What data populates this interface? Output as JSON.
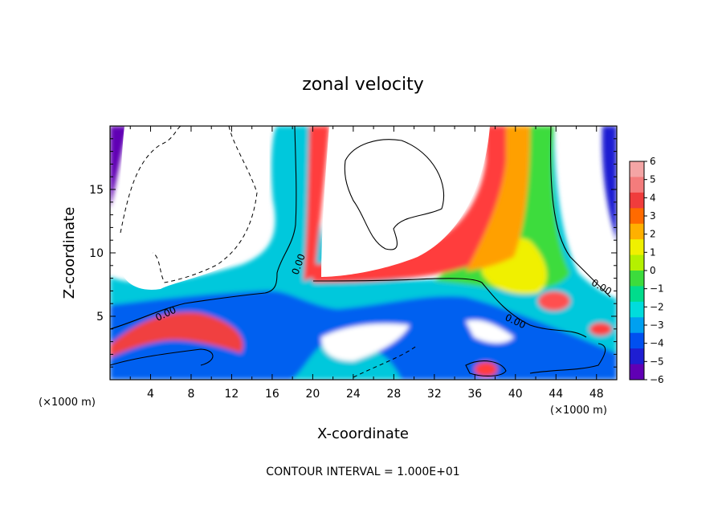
{
  "chart_data": {
    "type": "heatmap",
    "title": "zonal velocity",
    "xlabel": "X-coordinate",
    "ylabel": "Z-coordinate",
    "x_units": "(×1000 m)",
    "y_units": "(×1000 m)",
    "xlim": [
      0,
      50
    ],
    "ylim": [
      0,
      20
    ],
    "x_ticks": [
      "4",
      "8",
      "12",
      "16",
      "20",
      "24",
      "28",
      "32",
      "36",
      "40",
      "44",
      "48"
    ],
    "y_ticks": [
      "5",
      "10",
      "15"
    ],
    "colorbar": {
      "range": [
        -6,
        6
      ],
      "labels": [
        "6",
        "5",
        "4",
        "3",
        "2",
        "1",
        "0",
        "−1",
        "−2",
        "−3",
        "−4",
        "−5",
        "−6"
      ],
      "colors": [
        "#f4a5a5",
        "#f47c7c",
        "#f03c3c",
        "#ff6a00",
        "#ffb000",
        "#f0f000",
        "#b4f000",
        "#3cdc3c",
        "#00dc8c",
        "#00dcdc",
        "#00a0f0",
        "#0050f0",
        "#1e1ed2",
        "#6000b4"
      ],
      "placement": "right"
    },
    "contour_labels": [
      "0.00",
      "0.00",
      "0.00",
      "0.00",
      "0.00"
    ],
    "footer": "CONTOUR INTERVAL = 1.000E+01"
  }
}
